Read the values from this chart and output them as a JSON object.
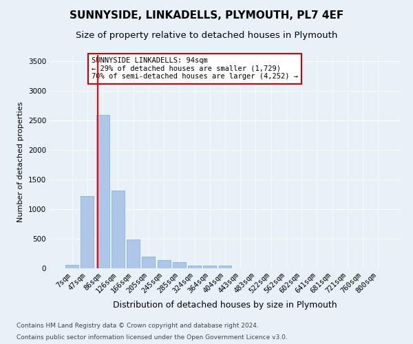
{
  "title": "SUNNYSIDE, LINKADELLS, PLYMOUTH, PL7 4EF",
  "subtitle": "Size of property relative to detached houses in Plymouth",
  "xlabel": "Distribution of detached houses by size in Plymouth",
  "ylabel": "Number of detached properties",
  "categories": [
    "7sqm",
    "47sqm",
    "86sqm",
    "126sqm",
    "166sqm",
    "205sqm",
    "245sqm",
    "285sqm",
    "324sqm",
    "364sqm",
    "404sqm",
    "443sqm",
    "483sqm",
    "522sqm",
    "562sqm",
    "602sqm",
    "641sqm",
    "681sqm",
    "721sqm",
    "760sqm",
    "800sqm"
  ],
  "values": [
    55,
    1220,
    2590,
    1310,
    490,
    200,
    145,
    100,
    50,
    50,
    50,
    0,
    0,
    0,
    0,
    0,
    0,
    0,
    0,
    0,
    0
  ],
  "bar_color": "#aec6e8",
  "bar_edgecolor": "#7aaad4",
  "ylim": [
    0,
    3600
  ],
  "yticks": [
    0,
    500,
    1000,
    1500,
    2000,
    2500,
    3000,
    3500
  ],
  "annotation_text": "SUNNYSIDE LINKADELLS: 94sqm\n← 29% of detached houses are smaller (1,729)\n70% of semi-detached houses are larger (4,252) →",
  "annotation_box_color": "#ffffff",
  "annotation_box_edgecolor": "#cc0000",
  "footnote1": "Contains HM Land Registry data © Crown copyright and database right 2024.",
  "footnote2": "Contains public sector information licensed under the Open Government Licence v3.0.",
  "background_color": "#e8f0f8",
  "plot_background": "#e8f0f8",
  "grid_color": "#ffffff",
  "title_fontsize": 11,
  "subtitle_fontsize": 9.5,
  "xlabel_fontsize": 9,
  "ylabel_fontsize": 8,
  "tick_fontsize": 7.5,
  "annotation_fontsize": 7.5,
  "footnote_fontsize": 6.5
}
